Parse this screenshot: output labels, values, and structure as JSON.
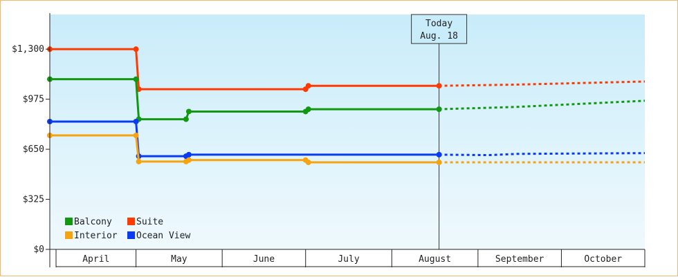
{
  "chart_data": {
    "type": "line",
    "title": "",
    "xlabel": "",
    "ylabel": "",
    "ylim": [
      0,
      1525
    ],
    "yticks": [
      {
        "value": 0,
        "label": "$0"
      },
      {
        "value": 325,
        "label": "$325"
      },
      {
        "value": 650,
        "label": "$650"
      },
      {
        "value": 975,
        "label": "$975"
      },
      {
        "value": 1300,
        "label": "$1,300"
      }
    ],
    "x_range": [
      "2024-03-31",
      "2024-10-31"
    ],
    "months": [
      {
        "label": "April",
        "start": "2024-04-01",
        "end": "2024-05-01"
      },
      {
        "label": "May",
        "start": "2024-05-01",
        "end": "2024-06-01"
      },
      {
        "label": "June",
        "start": "2024-06-01",
        "end": "2024-07-01"
      },
      {
        "label": "July",
        "start": "2024-07-01",
        "end": "2024-08-01"
      },
      {
        "label": "August",
        "start": "2024-08-01",
        "end": "2024-09-01"
      },
      {
        "label": "September",
        "start": "2024-09-01",
        "end": "2024-10-01"
      },
      {
        "label": "October",
        "start": "2024-10-01",
        "end": "2024-10-31"
      }
    ],
    "today": {
      "date": "2024-08-18",
      "line1": "Today",
      "line2": "Aug. 18"
    },
    "grid": false,
    "legend_position": "bottom-left",
    "series": [
      {
        "name": "Suite",
        "color": "#ff3a00",
        "points": [
          [
            "2024-03-31",
            1300
          ],
          [
            "2024-05-01",
            1300
          ],
          [
            "2024-05-02",
            1040
          ],
          [
            "2024-07-01",
            1040
          ],
          [
            "2024-07-02",
            1062
          ],
          [
            "2024-08-18",
            1062
          ]
        ],
        "forecast": [
          [
            "2024-08-18",
            1062
          ],
          [
            "2024-09-15",
            1070
          ],
          [
            "2024-10-31",
            1090
          ]
        ]
      },
      {
        "name": "Balcony",
        "color": "#109910",
        "points": [
          [
            "2024-03-31",
            1105
          ],
          [
            "2024-05-01",
            1105
          ],
          [
            "2024-05-02",
            845
          ],
          [
            "2024-05-19",
            845
          ],
          [
            "2024-05-20",
            895
          ],
          [
            "2024-07-01",
            895
          ],
          [
            "2024-07-02",
            910
          ],
          [
            "2024-08-18",
            910
          ]
        ],
        "forecast": [
          [
            "2024-08-18",
            910
          ],
          [
            "2024-09-15",
            925
          ],
          [
            "2024-10-31",
            965
          ]
        ]
      },
      {
        "name": "Ocean View",
        "color": "#0a3af2",
        "points": [
          [
            "2024-03-31",
            830
          ],
          [
            "2024-05-01",
            830
          ],
          [
            "2024-05-02",
            605
          ],
          [
            "2024-05-19",
            605
          ],
          [
            "2024-05-20",
            615
          ],
          [
            "2024-08-18",
            615
          ]
        ],
        "forecast": [
          [
            "2024-08-18",
            615
          ],
          [
            "2024-09-05",
            612
          ],
          [
            "2024-09-15",
            620
          ],
          [
            "2024-10-31",
            625
          ]
        ]
      },
      {
        "name": "Interior",
        "color": "#f5a30f",
        "points": [
          [
            "2024-03-31",
            740
          ],
          [
            "2024-05-01",
            740
          ],
          [
            "2024-05-02",
            570
          ],
          [
            "2024-05-19",
            570
          ],
          [
            "2024-05-20",
            580
          ],
          [
            "2024-07-01",
            580
          ],
          [
            "2024-07-02",
            565
          ],
          [
            "2024-08-18",
            565
          ]
        ],
        "forecast": [
          [
            "2024-08-18",
            565
          ],
          [
            "2024-10-31",
            565
          ]
        ]
      }
    ],
    "legend": [
      {
        "name": "Balcony",
        "color": "#109910"
      },
      {
        "name": "Suite",
        "color": "#ff3a00"
      },
      {
        "name": "Interior",
        "color": "#f5a30f"
      },
      {
        "name": "Ocean View",
        "color": "#0a3af2"
      }
    ]
  }
}
